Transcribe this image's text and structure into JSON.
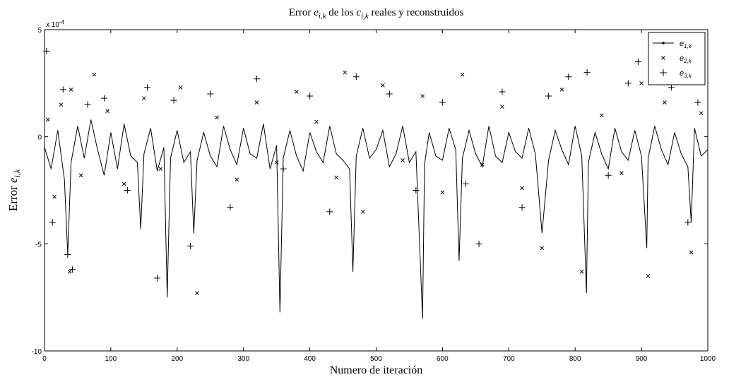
{
  "chart_data": {
    "type": "line",
    "title": {
      "prefix": "Error ",
      "e_symbol": "e",
      "e_sub": "i,k",
      "middle": " de los ",
      "c_symbol": "c",
      "c_sub": "i,k",
      "suffix": " reales y reconstruidos"
    },
    "xlabel": "Numero de iteración",
    "ylabel": {
      "prefix": "Error ",
      "symbol": "e",
      "sub": "i,k"
    },
    "y_exponent": {
      "base": "x 10",
      "power": "-4"
    },
    "xlim": [
      0,
      1000
    ],
    "ylim": [
      -10,
      5
    ],
    "x_ticks": [
      0,
      100,
      200,
      300,
      400,
      500,
      600,
      700,
      800,
      900,
      1000
    ],
    "x_tick_labels": [
      "0",
      "100",
      "200",
      "300",
      "400",
      "500",
      "600",
      "700",
      "800",
      "900",
      "1000"
    ],
    "y_ticks": [
      5,
      0,
      -5,
      -10
    ],
    "y_tick_labels": [
      "5",
      "0",
      "-5",
      "-10"
    ],
    "grid": false,
    "legend_position": "top-right",
    "series": [
      {
        "name": {
          "symbol": "e",
          "sub": "1,k"
        },
        "style": "line-dot",
        "x": [
          0,
          10,
          20,
          30,
          35,
          40,
          50,
          60,
          70,
          80,
          90,
          100,
          110,
          120,
          130,
          140,
          145,
          150,
          160,
          170,
          180,
          185,
          190,
          200,
          210,
          220,
          225,
          230,
          240,
          250,
          260,
          270,
          280,
          290,
          300,
          310,
          320,
          330,
          340,
          350,
          355,
          360,
          370,
          380,
          390,
          400,
          410,
          420,
          430,
          440,
          450,
          460,
          465,
          470,
          480,
          490,
          500,
          510,
          520,
          530,
          540,
          550,
          560,
          570,
          573,
          580,
          590,
          600,
          610,
          620,
          625,
          630,
          640,
          650,
          660,
          670,
          680,
          690,
          700,
          710,
          720,
          730,
          740,
          750,
          760,
          770,
          780,
          790,
          800,
          810,
          817,
          820,
          830,
          840,
          850,
          860,
          870,
          880,
          890,
          900,
          908,
          910,
          920,
          930,
          940,
          950,
          960,
          970,
          975,
          980,
          990,
          1000
        ],
        "y": [
          -0.5,
          -1.5,
          0.3,
          -2.0,
          -5.5,
          -1.2,
          0.5,
          -1.0,
          0.8,
          -0.6,
          -1.8,
          0.2,
          -1.5,
          0.6,
          -0.9,
          -1.2,
          -4.3,
          -0.8,
          0.4,
          -1.6,
          -0.5,
          -7.5,
          -1.0,
          0.3,
          -1.2,
          -0.7,
          -4.5,
          -1.1,
          0.2,
          -0.9,
          -1.4,
          0.5,
          -0.6,
          -1.3,
          0.4,
          -0.8,
          -1.0,
          0.6,
          -1.5,
          -0.4,
          -8.2,
          -1.0,
          0.3,
          -0.9,
          -1.6,
          0.2,
          -0.7,
          -1.2,
          0.5,
          -0.8,
          -1.1,
          -1.5,
          -6.3,
          -0.9,
          0.4,
          -1.0,
          -0.6,
          0.3,
          -1.4,
          -0.8,
          0.5,
          -1.2,
          -0.7,
          -8.5,
          -1.3,
          0.2,
          -0.9,
          -1.1,
          0.4,
          -0.6,
          -5.8,
          -1.0,
          0.3,
          -0.8,
          -1.4,
          0.5,
          -0.9,
          -1.2,
          0.2,
          -0.7,
          -1.0,
          0.4,
          -0.8,
          -4.5,
          -1.1,
          0.3,
          -0.6,
          -1.3,
          0.5,
          -0.9,
          -7.3,
          -1.2,
          0.2,
          -0.8,
          -1.5,
          0.4,
          -0.7,
          -1.1,
          0.3,
          -0.9,
          -5.2,
          -1.0,
          0.5,
          -0.6,
          -1.3,
          0.2,
          -0.8,
          -1.4,
          -4.0,
          0.4,
          -0.9,
          -0.6
        ]
      },
      {
        "name": {
          "symbol": "e",
          "sub": "2,k"
        },
        "style": "x-marker",
        "x": [
          5,
          15,
          25,
          38,
          40,
          55,
          75,
          95,
          120,
          150,
          175,
          205,
          230,
          260,
          290,
          320,
          350,
          380,
          410,
          440,
          453,
          480,
          510,
          540,
          570,
          600,
          630,
          660,
          690,
          720,
          750,
          780,
          810,
          840,
          870,
          900,
          910,
          935,
          960,
          975,
          990
        ],
        "y": [
          0.8,
          -2.8,
          1.5,
          -6.3,
          2.2,
          -1.8,
          2.9,
          1.2,
          -2.2,
          1.8,
          -1.5,
          2.3,
          -7.3,
          0.9,
          -2.0,
          1.6,
          -1.2,
          2.1,
          0.7,
          -1.9,
          3.0,
          -3.5,
          2.4,
          -1.1,
          1.9,
          -2.6,
          2.9,
          -1.3,
          1.4,
          -2.4,
          -5.2,
          2.2,
          -6.3,
          1.0,
          -1.7,
          2.5,
          -6.5,
          1.6,
          2.8,
          -5.4,
          1.1
        ]
      },
      {
        "name": {
          "symbol": "e",
          "sub": "3,k"
        },
        "style": "plus-marker",
        "x": [
          3,
          12,
          28,
          35,
          42,
          65,
          90,
          125,
          155,
          170,
          195,
          220,
          250,
          280,
          320,
          360,
          400,
          430,
          470,
          520,
          560,
          600,
          635,
          655,
          690,
          720,
          760,
          790,
          818,
          850,
          880,
          895,
          915,
          945,
          970,
          985
        ],
        "y": [
          4.0,
          -4.0,
          2.2,
          -5.5,
          -6.2,
          1.5,
          1.8,
          -2.5,
          2.3,
          -6.6,
          1.7,
          -5.1,
          2.0,
          -3.3,
          2.7,
          -1.5,
          1.9,
          -3.5,
          2.8,
          2.0,
          -2.5,
          1.6,
          -2.2,
          -5.0,
          2.1,
          -3.3,
          1.9,
          2.8,
          3.0,
          -1.8,
          2.5,
          3.5,
          3.0,
          2.3,
          -4.0,
          1.6
        ]
      }
    ]
  }
}
